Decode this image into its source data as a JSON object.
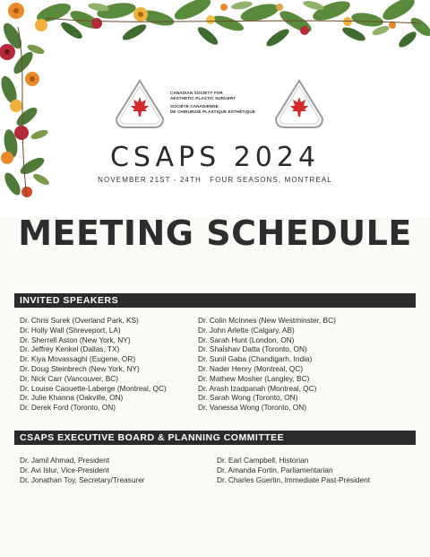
{
  "logo": {
    "line1": "CANADIAN SOCIETY FOR",
    "line2": "AESTHETIC PLASTIC SURGERY",
    "line3": "SOCIÉTÉ CANADIENNE",
    "line4": "DE CHIRURGIE PLASTIQUE ESTHÉTIQUE",
    "badge_left_top": "CANADIAN SOCIETY FOR AESTHETIC",
    "badge_left_bottom": "PLASTIC SURGERY",
    "badge_right_top": "SOCIÉTÉ CANADIENNE DE CHIRURGIE PLASTIQUE",
    "badge_right_bottom": "ESTHÉTIQUE"
  },
  "event": {
    "title": "CSAPS 2024",
    "dates": "NOVEMBER 21ST - 24TH",
    "venue": "FOUR SEASONS, MONTREAL"
  },
  "schedule_title": "MEETING SCHEDULE",
  "speakers": {
    "heading": "INVITED SPEAKERS",
    "left": [
      "Dr. Chris Surek (Overland Park, KS)",
      "Dr. Holly Wall (Shreveport, LA)",
      "Dr. Sherrell Aston (New York, NY)",
      "Dr. Jeffrey Kenkel (Dallas, TX)",
      "Dr. Kiya Movassaghi (Eugene, OR)",
      "Dr. Doug Steinbrech (New York, NY)",
      "Dr. Nick Carr (Vancouver, BC)",
      "Dr. Louise Caouette-Laberge (Montreal, QC)",
      "Dr. Julie Khanna (Oakville, ON)",
      "Dr. Derek Ford (Toronto, ON)"
    ],
    "right": [
      "Dr. Colin McInnes (New Westminster, BC)",
      "Dr. John Arlette (Calgary, AB)",
      "Dr. Sarah Hunt (London, ON)",
      "Dr. Shaishav Datta (Toronto, ON)",
      "Dr. Sunil Gaba (Chandigarh, India)",
      "Dr. Nader Henry (Montreal, QC)",
      "Dr. Mathew Mosher (Langley, BC)",
      "Dr. Arash Izadpanah (Montreal, QC)",
      "Dr. Sarah Wong (Toronto, ON)",
      "Dr. Vanessa Wong (Toronto, ON)"
    ]
  },
  "board": {
    "heading": "CSAPS EXECUTIVE BOARD & PLANNING COMMITTEE",
    "left": [
      "Dr. Jamil Ahmad, President",
      "Dr. Avi Islur, Vice-President",
      "Dr. Jonathan Toy, Secretary/Treasurer"
    ],
    "right": [
      "Dr. Earl Campbell, Historian",
      "Dr. Amanda Fortin, Parliamentarian",
      "Dr. Charles Guertin, Immediate Past-President"
    ]
  },
  "colors": {
    "dark_bar": "#2b2b2b",
    "maple_red": "#d42a2a",
    "foliage_green": "#4f7a3a",
    "flower_orange": "#e8892a",
    "flower_red": "#b8283a"
  }
}
